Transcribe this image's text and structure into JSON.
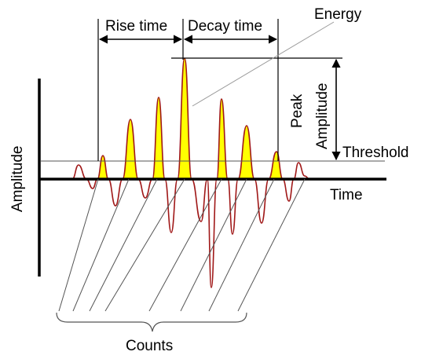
{
  "labels": {
    "energy": "Energy",
    "rise_time": "Rise time",
    "decay_time": "Decay time",
    "peak_amplitude_line1": "Peak",
    "peak_amplitude_line2": "Amplitude",
    "threshold": "Threshold",
    "time": "Time",
    "amplitude": "Amplitude",
    "counts": "Counts"
  },
  "colors": {
    "waveform": "#a01818",
    "fill": "#ffff00",
    "axis": "#000000",
    "thin_line": "#555555",
    "energy_leader": "#9a9a9a"
  },
  "icons": {
    "rise_time_arrow": "double-headed-arrow",
    "decay_time_arrow": "double-headed-arrow",
    "peak_amplitude_arrow": "double-headed-arrow",
    "counts_brace": "curly-brace"
  }
}
